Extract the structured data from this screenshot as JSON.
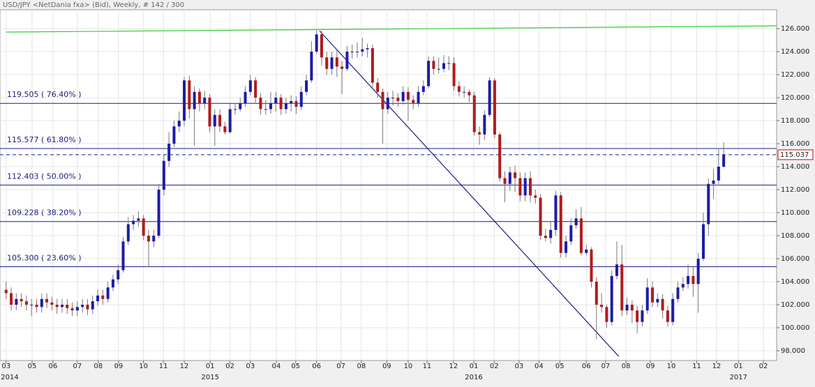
{
  "chart_data": {
    "type": "candlestick",
    "title": "USD/JPY <NetDania fxa> (Bid), Weekly, # 142 / 300",
    "up_color": "#1c1ca8",
    "down_color": "#b01c1c",
    "open": [
      103.3,
      103.0,
      102.0,
      102.5,
      102.3,
      102.0,
      102.0,
      101.8,
      102.5,
      102.2,
      102.0,
      101.8,
      102.0,
      101.7,
      101.5,
      101.8,
      102.0,
      101.6,
      102.3,
      102.8,
      102.5,
      103.5,
      104.2,
      105.0,
      107.5,
      109.0,
      109.3,
      109.5,
      108.0,
      107.5,
      108.0,
      112.0,
      114.5,
      116.0,
      117.5,
      118.0,
      121.5,
      119.0,
      120.5,
      119.5,
      120.0,
      117.5,
      118.5,
      117.5,
      117.0,
      119.0,
      119.0,
      119.5,
      120.5,
      121.5,
      120.0,
      119.0,
      119.0,
      119.5,
      120.0,
      119.0,
      119.5,
      119.7,
      119.2,
      120.5,
      121.5,
      124.0,
      125.5,
      123.5,
      122.5,
      123.5,
      122.7,
      122.5,
      124.0,
      124.0,
      124.0,
      124.2,
      124.3,
      121.3,
      120.5,
      119.0,
      120.0,
      120.0,
      119.7,
      120.5,
      119.8,
      119.5,
      120.5,
      121.0,
      123.2,
      122.5,
      122.5,
      123.0,
      123.0,
      121.0,
      120.5,
      120.5,
      120.2,
      117.0,
      116.8,
      118.5,
      121.5,
      116.8,
      113.0,
      112.5,
      113.5,
      113.0,
      111.5,
      113.0,
      111.5,
      111.3,
      108.0,
      107.8,
      108.5,
      111.5,
      106.5,
      107.5,
      108.9,
      109.5,
      106.5,
      106.8,
      104.0,
      102.0,
      101.8,
      100.5,
      104.5,
      105.5,
      101.5,
      102.0,
      101.5,
      100.5,
      101.5,
      103.5,
      102.2,
      102.5,
      101.5,
      100.5,
      102.5,
      103.5,
      103.8,
      104.5,
      103.8,
      106.0,
      109.0,
      112.5,
      112.8,
      114.0
    ],
    "high": [
      104.0,
      103.5,
      103.0,
      103.0,
      102.8,
      102.5,
      102.5,
      103.0,
      103.0,
      102.7,
      102.5,
      102.5,
      102.5,
      102.2,
      102.3,
      102.5,
      102.5,
      102.8,
      103.3,
      103.3,
      104.0,
      104.6,
      105.5,
      107.9,
      109.6,
      109.8,
      110.1,
      109.8,
      108.5,
      108.5,
      112.5,
      115.0,
      117.0,
      118.0,
      118.8,
      121.8,
      121.9,
      121.0,
      120.8,
      120.6,
      120.3,
      119.0,
      119.0,
      117.9,
      119.5,
      119.5,
      120.0,
      121.0,
      122.0,
      121.8,
      120.4,
      119.8,
      120.5,
      120.5,
      120.3,
      120.0,
      120.2,
      120.1,
      121.0,
      122.0,
      124.9,
      125.9,
      125.8,
      124.0,
      124.0,
      124.1,
      123.2,
      124.5,
      124.6,
      124.8,
      125.2,
      124.7,
      124.6,
      121.7,
      120.8,
      120.5,
      120.6,
      120.4,
      121.0,
      120.9,
      120.2,
      121.0,
      121.5,
      123.6,
      123.6,
      123.5,
      123.7,
      123.6,
      123.5,
      121.4,
      121.0,
      120.7,
      120.5,
      117.5,
      118.9,
      121.8,
      121.7,
      117.0,
      113.6,
      114.0,
      114.1,
      113.5,
      113.5,
      113.6,
      112.0,
      111.6,
      108.6,
      109.2,
      111.9,
      111.8,
      108.0,
      109.5,
      110.3,
      110.5,
      107.2,
      107.0,
      104.4,
      103.0,
      102.0,
      105.0,
      107.5,
      107.2,
      102.6,
      102.4,
      101.9,
      102.0,
      104.3,
      104.0,
      103.0,
      102.9,
      101.9,
      103.0,
      104.0,
      104.4,
      105.5,
      105.3,
      106.5,
      110.0,
      113.0,
      113.8,
      115.5,
      116.1
    ],
    "low": [
      102.5,
      101.5,
      101.5,
      101.8,
      101.5,
      101.0,
      101.3,
      101.3,
      101.7,
      101.5,
      101.2,
      101.3,
      101.2,
      101.0,
      101.0,
      101.3,
      101.1,
      101.2,
      101.9,
      102.0,
      102.2,
      103.2,
      103.8,
      104.8,
      107.2,
      108.5,
      108.8,
      107.6,
      105.3,
      107.0,
      107.8,
      111.5,
      114.0,
      115.7,
      117.0,
      117.5,
      118.2,
      115.8,
      118.8,
      119.0,
      117.0,
      115.8,
      117.0,
      116.8,
      116.9,
      118.5,
      118.8,
      119.2,
      120.2,
      119.5,
      118.5,
      118.5,
      118.6,
      118.8,
      118.5,
      118.6,
      118.8,
      118.6,
      118.9,
      120.2,
      121.3,
      123.8,
      122.8,
      122.0,
      122.0,
      121.8,
      120.3,
      122.3,
      123.4,
      123.5,
      123.6,
      123.5,
      120.8,
      120.0,
      116.0,
      118.6,
      119.3,
      119.2,
      119.4,
      118.0,
      119.0,
      119.2,
      120.2,
      120.8,
      122.0,
      122.1,
      122.2,
      122.4,
      120.6,
      120.1,
      120.0,
      119.6,
      116.7,
      115.9,
      116.3,
      118.3,
      116.5,
      112.7,
      110.9,
      111.9,
      111.8,
      111.0,
      111.0,
      110.9,
      110.8,
      107.6,
      107.5,
      107.3,
      108.0,
      106.1,
      106.1,
      107.2,
      108.6,
      106.3,
      106.3,
      103.5,
      99.0,
      101.3,
      100.0,
      100.2,
      104.2,
      101.0,
      101.1,
      100.4,
      99.5,
      100.1,
      101.2,
      101.8,
      101.8,
      100.8,
      100.1,
      100.2,
      102.2,
      103.2,
      103.4,
      102.7,
      101.3,
      105.8,
      108.0,
      111.2,
      112.5,
      113.9
    ],
    "close": [
      103.0,
      102.0,
      102.5,
      102.3,
      102.0,
      102.0,
      101.8,
      102.5,
      102.2,
      102.0,
      101.8,
      102.0,
      101.7,
      101.5,
      101.8,
      102.0,
      101.6,
      102.3,
      102.8,
      102.5,
      103.5,
      104.2,
      105.0,
      107.5,
      109.0,
      109.3,
      109.5,
      108.0,
      107.5,
      108.0,
      112.0,
      114.5,
      116.0,
      117.5,
      118.0,
      121.5,
      119.0,
      120.5,
      119.5,
      120.0,
      117.5,
      118.5,
      117.5,
      117.0,
      119.0,
      119.0,
      119.5,
      120.5,
      121.5,
      120.0,
      119.0,
      119.0,
      119.5,
      120.0,
      119.0,
      119.5,
      119.7,
      119.2,
      120.5,
      121.5,
      124.0,
      125.5,
      123.5,
      122.5,
      123.5,
      122.7,
      122.5,
      124.0,
      124.0,
      124.0,
      124.2,
      124.3,
      121.3,
      120.5,
      119.0,
      120.0,
      120.0,
      119.7,
      120.5,
      119.8,
      119.5,
      120.5,
      121.0,
      123.2,
      122.5,
      122.5,
      123.0,
      123.0,
      121.0,
      120.5,
      120.5,
      120.2,
      117.0,
      116.8,
      118.5,
      121.5,
      116.8,
      113.0,
      112.5,
      113.5,
      113.0,
      111.5,
      113.0,
      111.5,
      111.3,
      108.0,
      107.8,
      108.5,
      111.5,
      106.5,
      107.5,
      108.9,
      109.5,
      106.5,
      106.8,
      104.0,
      102.0,
      101.8,
      100.5,
      104.5,
      105.5,
      101.5,
      102.0,
      101.5,
      100.5,
      101.5,
      103.5,
      102.2,
      102.5,
      101.5,
      100.5,
      102.5,
      103.5,
      103.8,
      104.5,
      103.8,
      106.0,
      109.0,
      112.5,
      112.8,
      114.0,
      115.037
    ],
    "xlim": [
      -1.2,
      151.4
    ],
    "xticks": [
      {
        "value": 0,
        "label": "03"
      },
      {
        "value": 5.1,
        "label": "05"
      },
      {
        "value": 9.2,
        "label": "06"
      },
      {
        "value": 14.0,
        "label": "07"
      },
      {
        "value": 18.1,
        "label": "08"
      },
      {
        "value": 22.1,
        "label": "09"
      },
      {
        "value": 27.0,
        "label": "10"
      },
      {
        "value": 30.9,
        "label": "11"
      },
      {
        "value": 35.0,
        "label": "12"
      },
      {
        "value": 40.1,
        "label": "01"
      },
      {
        "value": 44.0,
        "label": "02"
      },
      {
        "value": 48.0,
        "label": "03"
      },
      {
        "value": 53.1,
        "label": "04"
      },
      {
        "value": 56.9,
        "label": "05"
      },
      {
        "value": 61.0,
        "label": "06"
      },
      {
        "value": 65.8,
        "label": "07"
      },
      {
        "value": 69.8,
        "label": "08"
      },
      {
        "value": 74.8,
        "label": "09"
      },
      {
        "value": 79.0,
        "label": "10"
      },
      {
        "value": 82.7,
        "label": "11"
      },
      {
        "value": 87.9,
        "label": "12"
      },
      {
        "value": 91.9,
        "label": "01"
      },
      {
        "value": 95.9,
        "label": "02"
      },
      {
        "value": 100.8,
        "label": "03"
      },
      {
        "value": 104.7,
        "label": "04"
      },
      {
        "value": 108.8,
        "label": "05"
      },
      {
        "value": 114.0,
        "label": "06"
      },
      {
        "value": 117.8,
        "label": "07"
      },
      {
        "value": 121.8,
        "label": "08"
      },
      {
        "value": 126.6,
        "label": "09"
      },
      {
        "value": 130.7,
        "label": "10"
      },
      {
        "value": 135.7,
        "label": "11"
      },
      {
        "value": 139.6,
        "label": "12"
      },
      {
        "value": 143.9,
        "label": "01"
      },
      {
        "value": 148.8,
        "label": "02"
      }
    ],
    "year_ticks": [
      {
        "value": 0,
        "label": "2014"
      },
      {
        "value": 40.1,
        "label": "2015"
      },
      {
        "value": 91.9,
        "label": "2016"
      },
      {
        "value": 143.9,
        "label": "2017"
      }
    ],
    "ylim": [
      97.15,
      127.64
    ],
    "yticks": [
      {
        "value": 98,
        "label": "98.000"
      },
      {
        "value": 100,
        "label": "100.000"
      },
      {
        "value": 102,
        "label": "102.000"
      },
      {
        "value": 104,
        "label": "104.000"
      },
      {
        "value": 106,
        "label": "106.000"
      },
      {
        "value": 108,
        "label": "108.000"
      },
      {
        "value": 110,
        "label": "110.000"
      },
      {
        "value": 112,
        "label": "112.000"
      },
      {
        "value": 114,
        "label": "114.000"
      },
      {
        "value": 116,
        "label": "116.000"
      },
      {
        "value": 118,
        "label": "118.000"
      },
      {
        "value": 120,
        "label": "120.000"
      },
      {
        "value": 122,
        "label": "122.000"
      },
      {
        "value": 124,
        "label": "124.000"
      },
      {
        "value": 126,
        "label": "126.000"
      }
    ],
    "grid": true,
    "levels_color": "#1c1c80",
    "levels": [
      {
        "value": 119.505,
        "label": "119.505 ( 76.40% )"
      },
      {
        "value": 115.577,
        "label": "115.577 ( 61.80% )"
      },
      {
        "value": 112.403,
        "label": "112.403 ( 50.00% )"
      },
      {
        "value": 109.228,
        "label": "109.228 ( 38.20% )"
      },
      {
        "value": 105.3,
        "label": "105.300 ( 23.60% )"
      }
    ],
    "last_price": 115.037,
    "trendlines": [
      {
        "color": "#33cc33",
        "x": [
          0,
          151.4
        ],
        "y": [
          125.7,
          126.24
        ]
      },
      {
        "color": "#1c1c80",
        "x": [
          61.6,
          120.4
        ],
        "y": [
          125.8,
          97.5
        ]
      }
    ]
  }
}
